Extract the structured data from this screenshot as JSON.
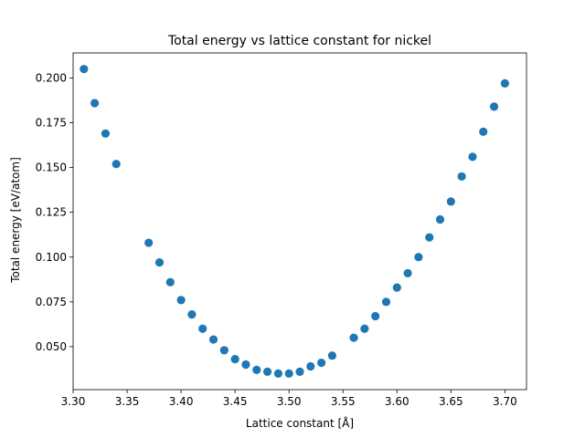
{
  "chart_data": {
    "type": "scatter",
    "title": "Total energy vs lattice constant for nickel",
    "xlabel": "Lattice constant [Å]",
    "ylabel": "Total energy [eV/atom]",
    "xlim": [
      3.3,
      3.72
    ],
    "ylim": [
      0.026,
      0.214
    ],
    "xticks": [
      3.3,
      3.35,
      3.4,
      3.45,
      3.5,
      3.55,
      3.6,
      3.65,
      3.7
    ],
    "xtick_labels": [
      "3.30",
      "3.35",
      "3.40",
      "3.45",
      "3.50",
      "3.55",
      "3.60",
      "3.65",
      "3.70"
    ],
    "yticks": [
      0.05,
      0.075,
      0.1,
      0.125,
      0.15,
      0.175,
      0.2
    ],
    "ytick_labels": [
      "0.050",
      "0.075",
      "0.100",
      "0.125",
      "0.150",
      "0.175",
      "0.200"
    ],
    "grid": false,
    "marker_color": "#1f77b4",
    "x": [
      3.31,
      3.32,
      3.33,
      3.34,
      3.37,
      3.38,
      3.39,
      3.4,
      3.41,
      3.42,
      3.43,
      3.44,
      3.45,
      3.46,
      3.47,
      3.48,
      3.49,
      3.5,
      3.51,
      3.52,
      3.53,
      3.54,
      3.56,
      3.57,
      3.58,
      3.59,
      3.6,
      3.61,
      3.62,
      3.63,
      3.64,
      3.65,
      3.66,
      3.67,
      3.68,
      3.69,
      3.7
    ],
    "y": [
      0.205,
      0.186,
      0.169,
      0.152,
      0.108,
      0.097,
      0.086,
      0.076,
      0.068,
      0.06,
      0.054,
      0.048,
      0.043,
      0.04,
      0.037,
      0.036,
      0.035,
      0.035,
      0.036,
      0.039,
      0.041,
      0.045,
      0.055,
      0.06,
      0.067,
      0.075,
      0.083,
      0.091,
      0.1,
      0.111,
      0.121,
      0.131,
      0.145,
      0.156,
      0.17,
      0.184,
      0.197
    ]
  }
}
